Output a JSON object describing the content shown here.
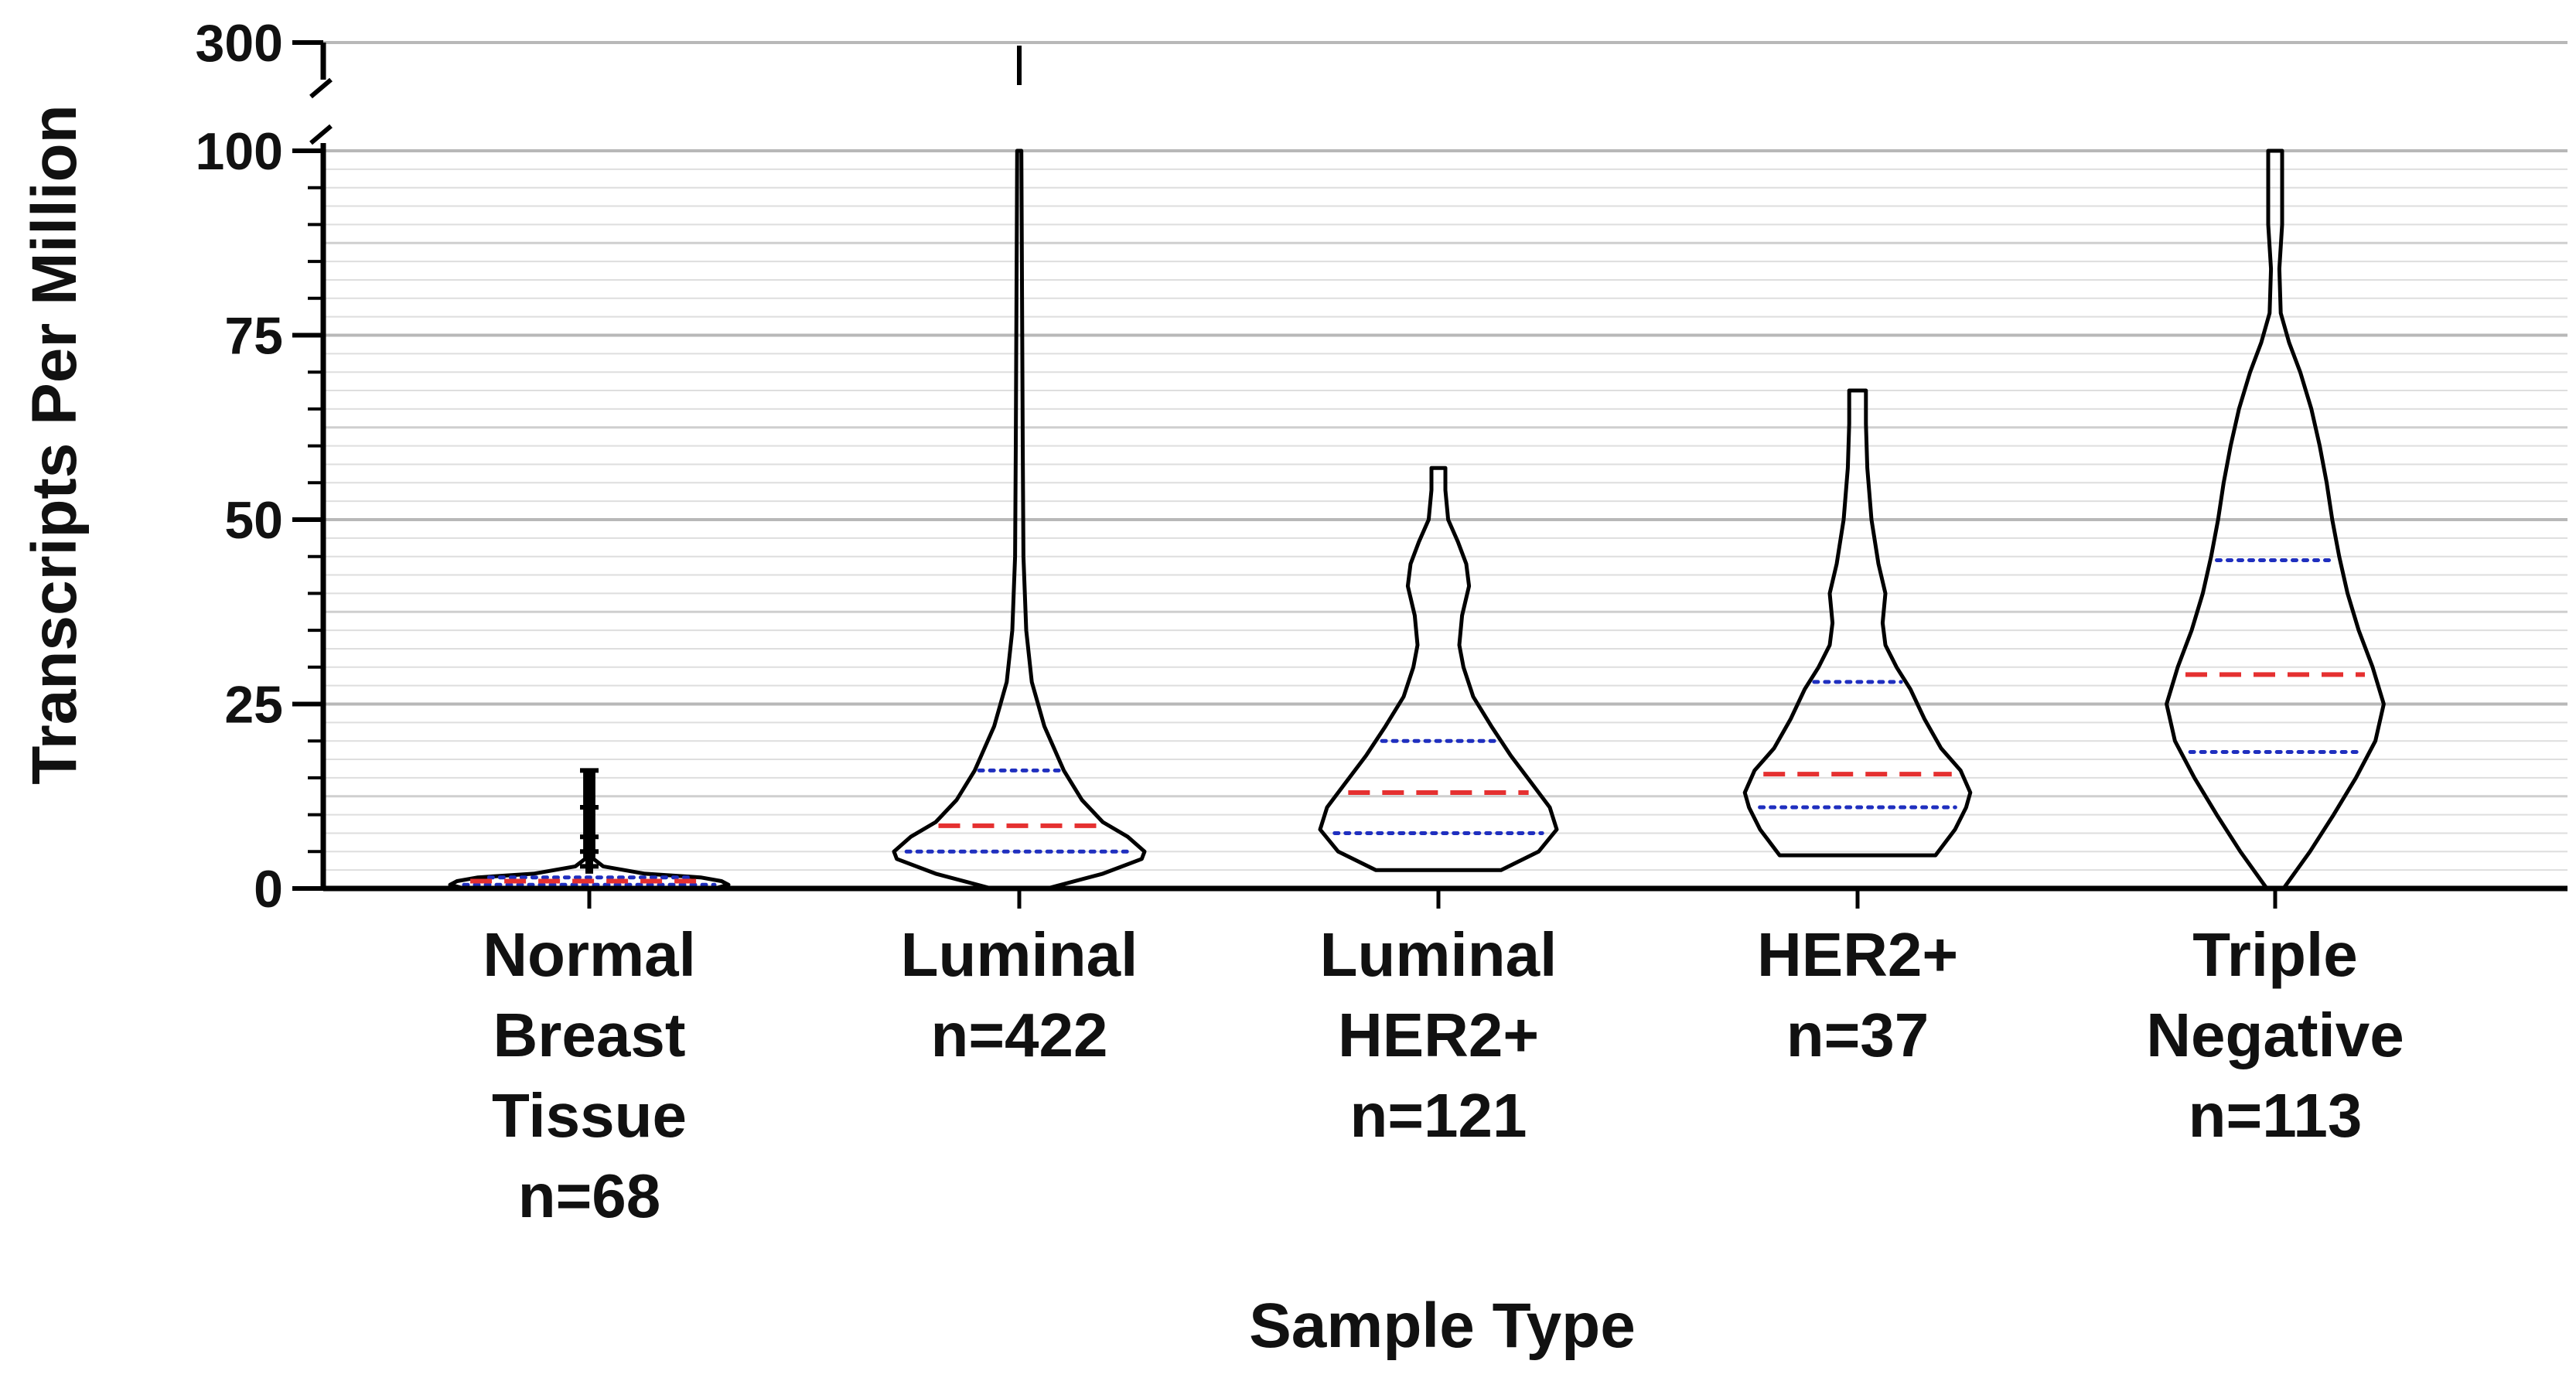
{
  "chart_data": {
    "type": "violin",
    "title": "",
    "xlabel": "Sample Type",
    "ylabel": "Transcripts Per Million",
    "ylim": [
      0,
      100
    ],
    "y_break": {
      "from": 100,
      "to": 300
    },
    "yticks": [
      0,
      25,
      50,
      75,
      100
    ],
    "ytick_labels": [
      "0",
      "25",
      "50",
      "75",
      "100"
    ],
    "top_tick_label": "300",
    "grid": true,
    "colors": {
      "median": "#e53030",
      "quartile": "#1f2fbf",
      "outline": "#000000",
      "grid": "#b8b8b8",
      "minor_grid": "#dedede"
    },
    "categories": [
      {
        "label": [
          "Normal",
          "Breast",
          "Tissue",
          "n=68"
        ],
        "n": 68,
        "min": 0,
        "q1": 0.5,
        "median": 1,
        "q3": 1.5,
        "max": 16,
        "profile": [
          [
            0,
            0.9
          ],
          [
            0.5,
            1
          ],
          [
            1,
            0.95
          ],
          [
            1.5,
            0.8
          ],
          [
            2,
            0.4
          ],
          [
            3,
            0.1
          ],
          [
            4,
            0.03
          ],
          [
            16,
            0.03
          ]
        ]
      },
      {
        "label": [
          "Luminal",
          "n=422"
        ],
        "n": 422,
        "min": 0,
        "q1": 5,
        "median": 8.5,
        "q3": 16,
        "max": 300,
        "profile": [
          [
            0,
            0.2
          ],
          [
            2,
            0.6
          ],
          [
            4,
            0.88
          ],
          [
            5,
            0.9
          ],
          [
            7,
            0.78
          ],
          [
            9,
            0.6
          ],
          [
            12,
            0.45
          ],
          [
            16,
            0.32
          ],
          [
            22,
            0.18
          ],
          [
            28,
            0.09
          ],
          [
            35,
            0.05
          ],
          [
            45,
            0.03
          ],
          [
            60,
            0.025
          ],
          [
            80,
            0.02
          ],
          [
            100,
            0.01
          ]
        ]
      },
      {
        "label": [
          "Luminal",
          "HER2+",
          "n=121"
        ],
        "n": 121,
        "min": 2.5,
        "q1": 7.5,
        "median": 13,
        "q3": 20,
        "max": 57,
        "profile": [
          [
            2.5,
            0.45
          ],
          [
            5,
            0.72
          ],
          [
            8,
            0.85
          ],
          [
            11,
            0.8
          ],
          [
            14,
            0.68
          ],
          [
            18,
            0.52
          ],
          [
            22,
            0.38
          ],
          [
            26,
            0.25
          ],
          [
            30,
            0.18
          ],
          [
            33,
            0.15
          ],
          [
            37,
            0.17
          ],
          [
            41,
            0.22
          ],
          [
            44,
            0.2
          ],
          [
            47,
            0.14
          ],
          [
            50,
            0.07
          ],
          [
            54,
            0.05
          ],
          [
            57,
            0.05
          ]
        ]
      },
      {
        "label": [
          "HER2+",
          "n=37"
        ],
        "n": 37,
        "min": 4.5,
        "q1": 11,
        "median": 15.5,
        "q3": 28,
        "max": 67.5,
        "profile": [
          [
            4.5,
            0.56
          ],
          [
            8,
            0.7
          ],
          [
            11,
            0.78
          ],
          [
            13,
            0.81
          ],
          [
            16,
            0.74
          ],
          [
            19,
            0.6
          ],
          [
            23,
            0.48
          ],
          [
            27,
            0.38
          ],
          [
            30,
            0.28
          ],
          [
            33,
            0.2
          ],
          [
            36,
            0.18
          ],
          [
            40,
            0.2
          ],
          [
            44,
            0.15
          ],
          [
            50,
            0.1
          ],
          [
            57,
            0.07
          ],
          [
            63,
            0.06
          ],
          [
            67.5,
            0.06
          ]
        ]
      },
      {
        "label": [
          "Triple",
          "Negative",
          "n=113"
        ],
        "n": 113,
        "min": 0,
        "q1": 18.5,
        "median": 29,
        "q3": 44.5,
        "max": 100,
        "profile": [
          [
            0,
            0.06
          ],
          [
            5,
            0.25
          ],
          [
            10,
            0.42
          ],
          [
            15,
            0.58
          ],
          [
            20,
            0.72
          ],
          [
            25,
            0.78
          ],
          [
            30,
            0.7
          ],
          [
            35,
            0.6
          ],
          [
            40,
            0.52
          ],
          [
            45,
            0.46
          ],
          [
            50,
            0.41
          ],
          [
            55,
            0.37
          ],
          [
            60,
            0.32
          ],
          [
            65,
            0.26
          ],
          [
            70,
            0.18
          ],
          [
            74,
            0.1
          ],
          [
            78,
            0.04
          ],
          [
            84,
            0.03
          ],
          [
            90,
            0.05
          ],
          [
            96,
            0.05
          ],
          [
            100,
            0.05
          ]
        ]
      }
    ]
  }
}
